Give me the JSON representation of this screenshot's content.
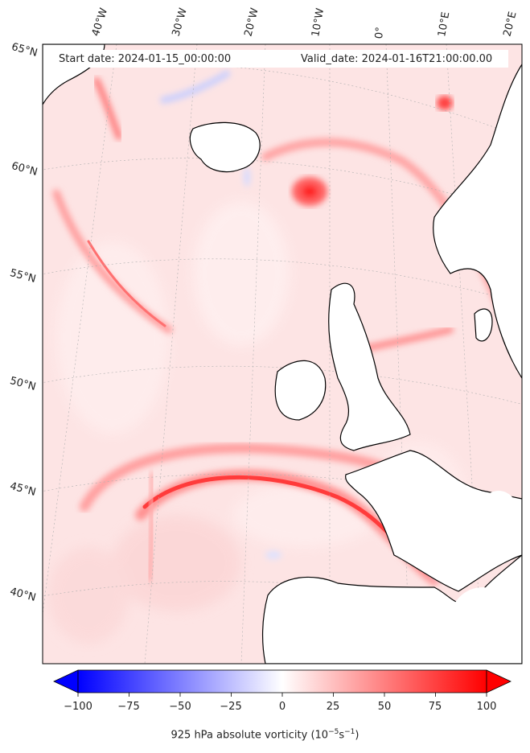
{
  "map": {
    "start_label": "Start date: 2024-01-15_00:00:00",
    "valid_label": "Valid_date: 2024-01-16T21:00:00.00",
    "lon_labels": [
      "40°W",
      "30°W",
      "20°W",
      "10°W",
      "0°",
      "10°E",
      "20°E"
    ],
    "lat_labels": [
      "65°N",
      "60°N",
      "55°N",
      "50°N",
      "45°N",
      "40°N"
    ]
  },
  "colorbar": {
    "ticks": [
      "−100",
      "−75",
      "−50",
      "−25",
      "0",
      "25",
      "50",
      "75",
      "100"
    ],
    "label": "925 hPa absolute vorticity (10",
    "label_exp1": "−5",
    "label_mid": "s",
    "label_exp2": "−1",
    "label_end": ")",
    "min": -100,
    "max": 100,
    "colors": {
      "negative": "#0000ff",
      "zero": "#ffffff",
      "positive": "#ff0000",
      "land_mask": "#ffffff",
      "field_base": "#fde3e3"
    }
  }
}
